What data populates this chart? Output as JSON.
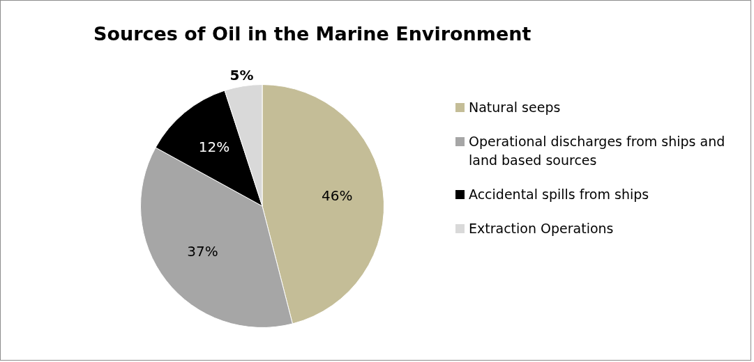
{
  "chart_data": {
    "type": "pie",
    "title": "Sources of Oil in the Marine Environment",
    "categories": [
      "Natural seeps",
      "Operational discharges from ships and land based sources",
      "Accidental spills from ships",
      "Extraction Operations"
    ],
    "values": [
      46,
      37,
      12,
      5
    ],
    "colors": [
      "#c4bd97",
      "#a6a6a6",
      "#000000",
      "#d9d9d9"
    ],
    "value_labels": [
      "46%",
      "37%",
      "12%",
      "5%"
    ],
    "legend": "right"
  }
}
